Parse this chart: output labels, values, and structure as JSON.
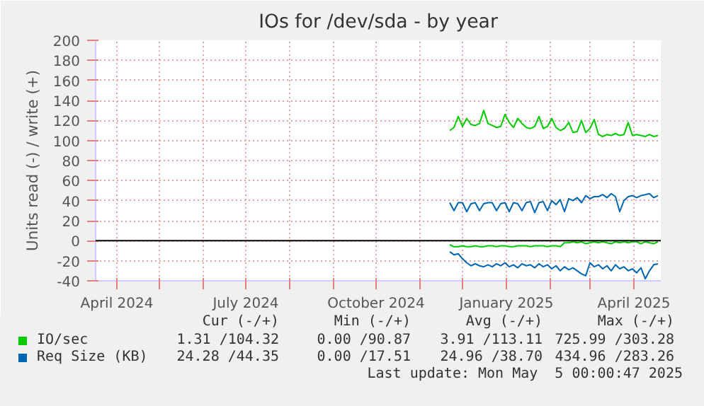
{
  "chart_data": {
    "type": "line",
    "title": "IOs for /dev/sda - by year",
    "ylabel": "Units read (-) / write (+)",
    "x": [
      "2024-11-22",
      "2024-11-25",
      "2024-11-28",
      "2024-12-01",
      "2024-12-04",
      "2024-12-07",
      "2024-12-10",
      "2024-12-13",
      "2024-12-16",
      "2024-12-19",
      "2024-12-22",
      "2024-12-25",
      "2024-12-28",
      "2024-12-31",
      "2025-01-03",
      "2025-01-06",
      "2025-01-09",
      "2025-01-12",
      "2025-01-15",
      "2025-01-18",
      "2025-01-21",
      "2025-01-24",
      "2025-01-27",
      "2025-01-30",
      "2025-02-02",
      "2025-02-05",
      "2025-02-08",
      "2025-02-11",
      "2025-02-14",
      "2025-02-17",
      "2025-02-20",
      "2025-02-23",
      "2025-02-26",
      "2025-03-01",
      "2025-03-04",
      "2025-03-07",
      "2025-03-10",
      "2025-03-13",
      "2025-03-16",
      "2025-03-19",
      "2025-03-22",
      "2025-03-25",
      "2025-03-28",
      "2025-03-31",
      "2025-04-03",
      "2025-04-06",
      "2025-04-09",
      "2025-04-12",
      "2025-04-15",
      "2025-04-18"
    ],
    "series": [
      {
        "name": "IO/sec",
        "color": "#00cc00",
        "values": [
          110,
          113,
          124,
          114,
          122,
          116,
          115,
          117,
          130,
          117,
          115,
          113,
          114,
          126,
          118,
          113,
          122,
          117,
          113,
          112,
          114,
          124,
          112,
          114,
          122,
          113,
          110,
          112,
          118,
          108,
          109,
          120,
          108,
          112,
          121,
          106,
          104,
          106,
          105,
          107,
          105,
          106,
          118,
          105,
          106,
          105,
          104,
          106,
          104,
          105
        ]
      },
      {
        "color": "#00cc00",
        "values": [
          -4,
          -6,
          -6,
          -5,
          -6,
          -6,
          -5,
          -6,
          -6,
          -5,
          -5,
          -6,
          -5,
          -5,
          -6,
          -6,
          -5,
          -5,
          -5,
          -6,
          -5,
          -5,
          -5,
          -6,
          -5,
          -5,
          -6,
          -2,
          -2,
          -1,
          -2,
          -1,
          -3,
          -2,
          -1,
          -2,
          -1,
          -2,
          -3,
          -1,
          -2,
          -1,
          -2,
          -1,
          -1,
          -3,
          -1,
          -2,
          -3,
          -1
        ]
      },
      {
        "name": "Req Size (KB)",
        "color": "#0066b3",
        "values": [
          38,
          30,
          38,
          38,
          29,
          37,
          38,
          30,
          37,
          38,
          38,
          30,
          37,
          38,
          29,
          38,
          37,
          30,
          38,
          39,
          28,
          38,
          39,
          30,
          40,
          36,
          41,
          29,
          42,
          40,
          43,
          38,
          45,
          42,
          44,
          44,
          46,
          43,
          47,
          44,
          29,
          40,
          44,
          45,
          43,
          45,
          46,
          47,
          43,
          45
        ]
      },
      {
        "color": "#0066b3",
        "values": [
          -11,
          -14,
          -13,
          -18,
          -22,
          -25,
          -23,
          -25,
          -26,
          -24,
          -26,
          -23,
          -25,
          -22,
          -26,
          -24,
          -27,
          -23,
          -25,
          -24,
          -27,
          -23,
          -26,
          -24,
          -28,
          -25,
          -30,
          -26,
          -29,
          -27,
          -30,
          -33,
          -35,
          -22,
          -26,
          -24,
          -28,
          -25,
          -30,
          -24,
          -28,
          -26,
          -30,
          -28,
          -32,
          -27,
          -38,
          -30,
          -24,
          -23
        ]
      }
    ],
    "xlim": [
      "2024-03-17",
      "2025-04-20"
    ],
    "ylim": [
      -40,
      200
    ],
    "xticks": [
      {
        "value": "2024-04-01",
        "label": "April 2024"
      },
      {
        "value": "2024-05-01",
        "label": null
      },
      {
        "value": "2024-06-01",
        "label": null
      },
      {
        "value": "2024-07-01",
        "label": "July 2024"
      },
      {
        "value": "2024-08-01",
        "label": null
      },
      {
        "value": "2024-09-01",
        "label": null
      },
      {
        "value": "2024-10-01",
        "label": "October 2024"
      },
      {
        "value": "2024-11-01",
        "label": null
      },
      {
        "value": "2024-12-01",
        "label": null
      },
      {
        "value": "2025-01-01",
        "label": "January 2025"
      },
      {
        "value": "2025-02-01",
        "label": null
      },
      {
        "value": "2025-03-01",
        "label": null
      },
      {
        "value": "2025-04-01",
        "label": "April 2025"
      }
    ],
    "yticks": [
      -40,
      -20,
      0,
      20,
      40,
      60,
      80,
      100,
      120,
      140,
      160,
      180,
      200
    ],
    "ref_lines": [
      {
        "axis": "y",
        "value": 0,
        "color": "#000000"
      }
    ],
    "grid": true,
    "legend": "bottom",
    "marker": "none",
    "line_style": "solid",
    "annotations": [
      "Cur (-/+)",
      "Min (-/+)",
      "Avg (-/+)",
      "Max (-/+)",
      "1.31 /104.32",
      "0.00 /90.87",
      "3.91 /113.11",
      "725.99 /303.28",
      "24.28 /44.35",
      "0.00 /17.51",
      "24.96 /38.70",
      "434.96 /283.26",
      "Last update: Mon May  5 00:00:47 2025"
    ]
  }
}
